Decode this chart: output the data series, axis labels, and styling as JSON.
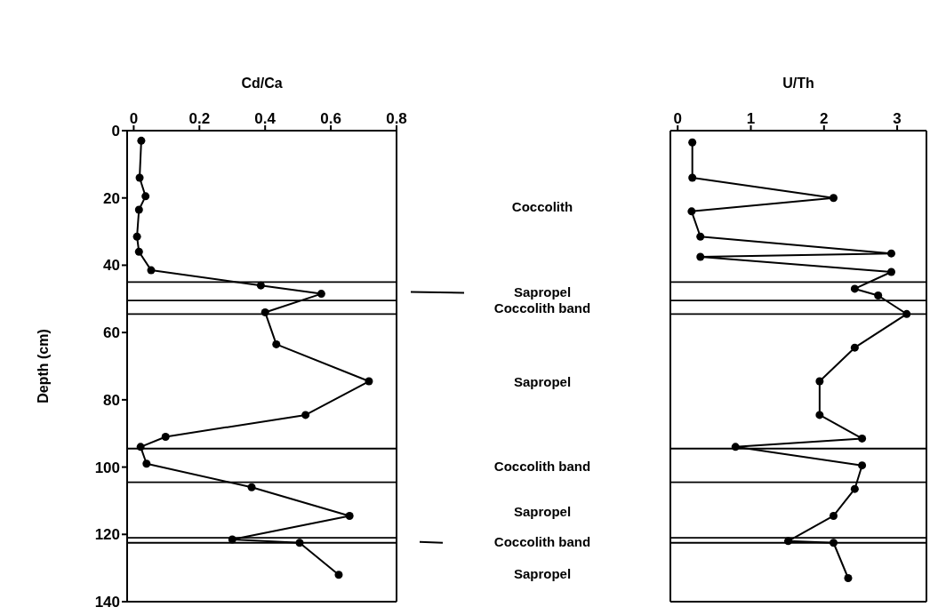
{
  "chart_data": [
    {
      "type": "line",
      "xlabel": "Cd/Ca",
      "ylabel": "Depth (cm)",
      "xlim": [
        -0.02,
        0.8
      ],
      "xticks": [
        0,
        0.2,
        0.4,
        0.6,
        0.8
      ],
      "ylim": [
        140,
        0
      ],
      "yticks": [
        0,
        20,
        40,
        60,
        80,
        100,
        120,
        140
      ],
      "marker": "circle",
      "series": [
        {
          "color": "#000000",
          "x": [
            0.023,
            0.018,
            0.036,
            0.016,
            0.01,
            0.016,
            0.053,
            0.387,
            0.571,
            0.4,
            0.434,
            0.716,
            0.523,
            0.097,
            0.021,
            0.039,
            0.359,
            0.657,
            0.3,
            0.505,
            0.624
          ],
          "values": [
            3,
            14,
            19.5,
            23.5,
            31.5,
            36,
            41.5,
            46,
            48.5,
            54,
            63.5,
            74.5,
            84.5,
            91,
            94,
            99,
            106,
            114.5,
            121.5,
            122.5,
            132
          ]
        }
      ],
      "ref_lines": [
        {
          "axis": "y",
          "value": 45,
          "color": "#000000"
        },
        {
          "axis": "y",
          "value": 50.5,
          "color": "#000000"
        },
        {
          "axis": "y",
          "value": 54.5,
          "color": "#000000"
        },
        {
          "axis": "y",
          "value": 94.5,
          "color": "#000000"
        },
        {
          "axis": "y",
          "value": 104.5,
          "color": "#000000"
        },
        {
          "axis": "y",
          "value": 121,
          "color": "#000000"
        },
        {
          "axis": "y",
          "value": 122.5,
          "color": "#000000"
        }
      ],
      "annotations": [
        "Coccolith",
        "Sapropel",
        "Coccolith band",
        "Sapropel",
        "Coccolith band",
        "Sapropel",
        "Coccolith band",
        "Sapropel"
      ]
    },
    {
      "type": "line",
      "xlabel": "U/Th",
      "xlim": [
        -0.1,
        3.4
      ],
      "xticks": [
        0,
        1,
        2,
        3
      ],
      "ylim": [
        140,
        0
      ],
      "yticks": [
        0,
        20,
        40,
        60,
        80,
        100,
        120,
        140
      ],
      "tick_labels": "x",
      "marker": "circle",
      "series": [
        {
          "color": "#000000",
          "x": [
            0.2,
            0.2,
            2.13,
            0.19,
            0.31,
            2.92,
            0.31,
            2.92,
            2.42,
            2.74,
            3.13,
            2.42,
            1.94,
            1.94,
            2.52,
            0.79,
            2.52,
            2.42,
            2.13,
            1.51,
            2.13,
            2.33
          ],
          "values": [
            3.5,
            14,
            20,
            24,
            31.5,
            36.5,
            37.5,
            42,
            47,
            49,
            54.5,
            64.5,
            74.5,
            84.5,
            91.5,
            94,
            99.5,
            106.5,
            114.5,
            122,
            122.5,
            133
          ]
        }
      ],
      "ref_lines": [
        {
          "axis": "y",
          "value": 45,
          "color": "#000000"
        },
        {
          "axis": "y",
          "value": 50.5,
          "color": "#000000"
        },
        {
          "axis": "y",
          "value": 54.5,
          "color": "#000000"
        },
        {
          "axis": "y",
          "value": 94.5,
          "color": "#000000"
        },
        {
          "axis": "y",
          "value": 104.5,
          "color": "#000000"
        },
        {
          "axis": "y",
          "value": 121,
          "color": "#000000"
        },
        {
          "axis": "y",
          "value": 122.5,
          "color": "#000000"
        }
      ]
    }
  ]
}
